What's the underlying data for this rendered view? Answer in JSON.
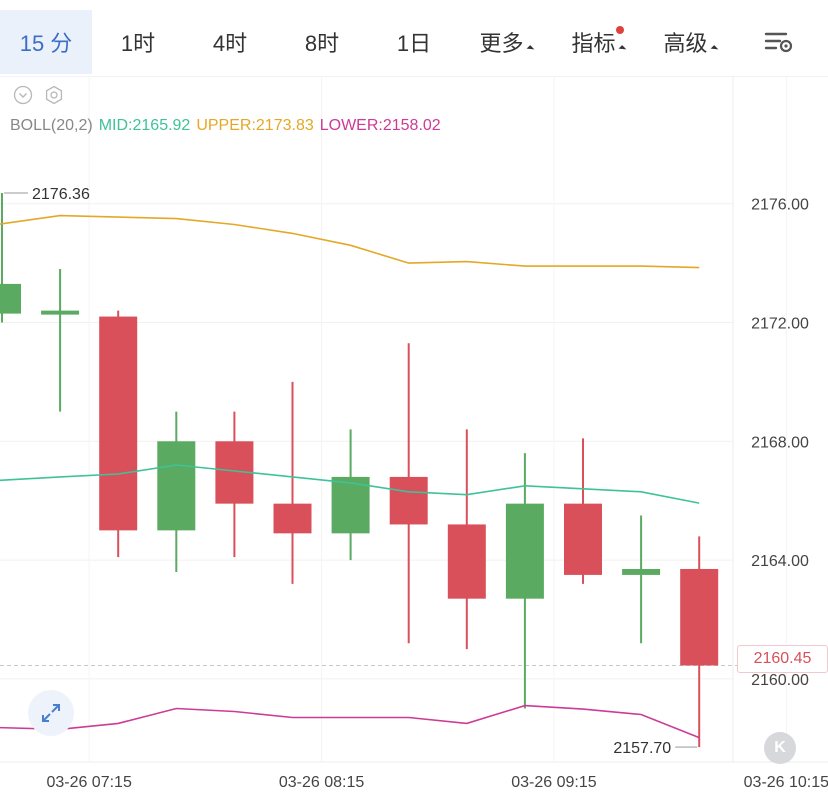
{
  "tabs": [
    {
      "label": "15 分",
      "active": true
    },
    {
      "label": "1时"
    },
    {
      "label": "4时"
    },
    {
      "label": "8时"
    },
    {
      "label": "1日"
    },
    {
      "label": "更多",
      "dropdown": true
    },
    {
      "label": "指标",
      "dropdown": true,
      "badge": true
    },
    {
      "label": "高级",
      "dropdown": true
    }
  ],
  "icons": {
    "settings": "chart-settings-icon",
    "collapse": "chevron-circle-icon",
    "gear": "gear-icon",
    "expand": "expand-arrows-icon",
    "kline": "k-line-icon"
  },
  "kline_label": "K",
  "colors": {
    "up": "#5aaa61",
    "down": "#d9505a",
    "mid": "#3ec29a",
    "upper": "#e4a826",
    "lower": "#cc3b96",
    "active_tab": "#3a6fc4",
    "badge": "#e0413c"
  },
  "legend": {
    "name": "BOLL(20,2)",
    "mid": "MID:2165.92",
    "upper": "UPPER:2173.83",
    "lower": "LOWER:2158.02"
  },
  "current_price": "2160.45",
  "chart_data": {
    "type": "candlestick",
    "ylim": [
      2157.2,
      2180.2
    ],
    "y_ticks": [
      "2176.00",
      "2172.00",
      "2168.00",
      "2164.00",
      "2160.00"
    ],
    "x_tick_labels": [
      "03-26 07:15",
      "03-26 08:15",
      "03-26 09:15",
      "03-26 10:15"
    ],
    "high_label": "2176.36",
    "low_label": "2157.70",
    "candles": [
      {
        "open": 2172.3,
        "close": 2173.3,
        "high": 2176.36,
        "low": 2172.0
      },
      {
        "open": 2172.3,
        "close": 2172.4,
        "high": 2173.8,
        "low": 2169.0
      },
      {
        "open": 2172.2,
        "close": 2165.0,
        "high": 2172.4,
        "low": 2164.1
      },
      {
        "open": 2165.0,
        "close": 2168.0,
        "high": 2169.0,
        "low": 2163.6
      },
      {
        "open": 2168.0,
        "close": 2165.9,
        "high": 2169.0,
        "low": 2164.1
      },
      {
        "open": 2165.9,
        "close": 2164.9,
        "high": 2170.0,
        "low": 2163.2
      },
      {
        "open": 2164.9,
        "close": 2166.8,
        "high": 2168.4,
        "low": 2164.0
      },
      {
        "open": 2166.8,
        "close": 2165.2,
        "high": 2171.3,
        "low": 2161.2
      },
      {
        "open": 2165.2,
        "close": 2162.7,
        "high": 2168.4,
        "low": 2161.0
      },
      {
        "open": 2162.7,
        "close": 2165.9,
        "high": 2167.6,
        "low": 2159.0
      },
      {
        "open": 2165.9,
        "close": 2163.5,
        "high": 2168.1,
        "low": 2163.2
      },
      {
        "open": 2163.5,
        "close": 2163.7,
        "high": 2165.5,
        "low": 2161.2
      },
      {
        "open": 2163.7,
        "close": 2160.45,
        "high": 2164.8,
        "low": 2157.7
      }
    ],
    "boll": {
      "x_index": [
        -0.8,
        1,
        2,
        3,
        4,
        5,
        6,
        7,
        8,
        9,
        10,
        11,
        12
      ],
      "upper": [
        2175.1,
        2175.6,
        2175.55,
        2175.5,
        2175.3,
        2175.0,
        2174.6,
        2174.0,
        2174.05,
        2173.9,
        2173.9,
        2173.9,
        2173.85
      ],
      "mid": [
        2166.6,
        2166.8,
        2166.9,
        2167.2,
        2167.0,
        2166.8,
        2166.6,
        2166.3,
        2166.2,
        2166.5,
        2166.4,
        2166.3,
        2165.92
      ],
      "lower": [
        2158.4,
        2158.3,
        2158.5,
        2159.0,
        2158.9,
        2158.7,
        2158.7,
        2158.7,
        2158.5,
        2159.1,
        2158.98,
        2158.8,
        2158.02
      ]
    }
  }
}
